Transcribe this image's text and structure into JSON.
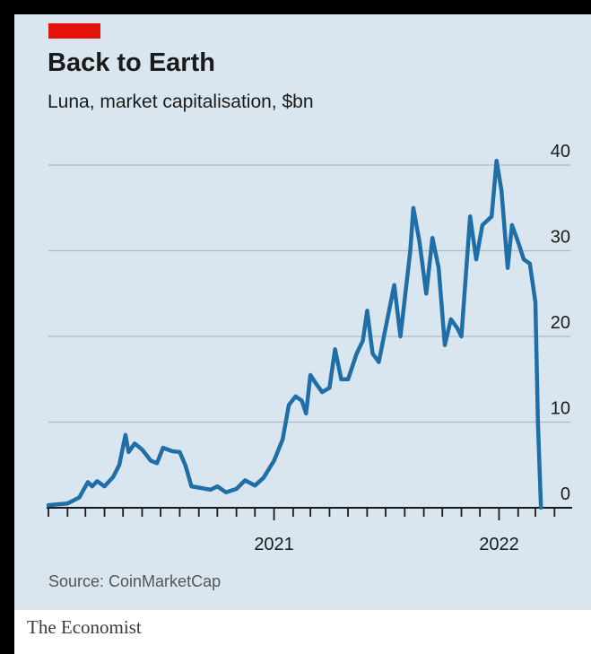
{
  "header": {
    "title": "Back to Earth",
    "subtitle": "Luna, market capitalisation, $bn"
  },
  "source": "Source: CoinMarketCap",
  "publisher": "The Economist",
  "colors": {
    "accent": "#e3120b",
    "line": "#1f6ea7",
    "panel_background": "#d9e6ef",
    "gridline": "#a9bac6"
  },
  "chart_data": {
    "type": "line",
    "title": "Back to Earth",
    "subtitle": "Luna, market capitalisation, $bn",
    "xlabel": "",
    "ylabel": "",
    "ylim": [
      0,
      40
    ],
    "yticks": [
      0,
      10,
      20,
      30,
      40
    ],
    "ytick_labels": [
      "0",
      "10",
      "20",
      "30",
      "40"
    ],
    "y_axis_position": "right",
    "grid": true,
    "xlim": [
      "2020-01-01",
      "2022-05-20"
    ],
    "xticks": [
      "2020-01-01",
      "2020-02-01",
      "2020-03-01",
      "2020-04-01",
      "2020-05-01",
      "2020-06-01",
      "2020-07-01",
      "2020-08-01",
      "2020-09-01",
      "2020-10-01",
      "2020-11-01",
      "2020-12-01",
      "2021-01-01",
      "2021-02-01",
      "2021-03-01",
      "2021-04-01",
      "2021-05-01",
      "2021-06-01",
      "2021-07-01",
      "2021-08-01",
      "2021-09-01",
      "2021-10-01",
      "2021-11-01",
      "2021-12-01",
      "2022-01-01",
      "2022-02-01",
      "2022-03-01",
      "2022-04-01",
      "2022-05-01"
    ],
    "xtick_labels": [
      {
        "date": "2021-01-01",
        "label": "2021"
      },
      {
        "date": "2022-01-01",
        "label": "2022"
      }
    ],
    "series": [
      {
        "points": [
          [
            "2020-01-01",
            0.3
          ],
          [
            "2020-01-15",
            0.4
          ],
          [
            "2020-02-01",
            0.5
          ],
          [
            "2020-02-20",
            1.2
          ],
          [
            "2020-03-05",
            3.0
          ],
          [
            "2020-03-12",
            2.5
          ],
          [
            "2020-03-20",
            3.1
          ],
          [
            "2020-04-01",
            2.5
          ],
          [
            "2020-04-15",
            3.6
          ],
          [
            "2020-04-25",
            5.0
          ],
          [
            "2020-05-05",
            8.5
          ],
          [
            "2020-05-10",
            6.5
          ],
          [
            "2020-05-20",
            7.5
          ],
          [
            "2020-06-01",
            6.8
          ],
          [
            "2020-06-15",
            5.5
          ],
          [
            "2020-06-25",
            5.2
          ],
          [
            "2020-07-05",
            7.0
          ],
          [
            "2020-07-20",
            6.6
          ],
          [
            "2020-08-01",
            6.5
          ],
          [
            "2020-08-10",
            5.0
          ],
          [
            "2020-08-20",
            2.5
          ],
          [
            "2020-09-05",
            2.3
          ],
          [
            "2020-09-20",
            2.1
          ],
          [
            "2020-10-01",
            2.5
          ],
          [
            "2020-10-15",
            1.8
          ],
          [
            "2020-11-01",
            2.2
          ],
          [
            "2020-11-15",
            3.2
          ],
          [
            "2020-12-01",
            2.6
          ],
          [
            "2020-12-15",
            3.5
          ],
          [
            "2021-01-01",
            5.5
          ],
          [
            "2021-01-15",
            8.0
          ],
          [
            "2021-01-25",
            12.0
          ],
          [
            "2021-02-05",
            13.0
          ],
          [
            "2021-02-15",
            12.5
          ],
          [
            "2021-02-22",
            11.0
          ],
          [
            "2021-03-01",
            15.5
          ],
          [
            "2021-03-10",
            14.5
          ],
          [
            "2021-03-20",
            13.5
          ],
          [
            "2021-04-01",
            14.0
          ],
          [
            "2021-04-10",
            18.5
          ],
          [
            "2021-04-20",
            15.0
          ],
          [
            "2021-05-01",
            15.0
          ],
          [
            "2021-05-15",
            18.0
          ],
          [
            "2021-05-25",
            19.5
          ],
          [
            "2021-06-01",
            23.0
          ],
          [
            "2021-06-10",
            18.0
          ],
          [
            "2021-06-20",
            17.0
          ],
          [
            "2021-07-01",
            21.0
          ],
          [
            "2021-07-15",
            26.0
          ],
          [
            "2021-07-25",
            20.0
          ],
          [
            "2021-08-10",
            30.0
          ],
          [
            "2021-08-15",
            35.0
          ],
          [
            "2021-08-25",
            31.0
          ],
          [
            "2021-09-05",
            25.0
          ],
          [
            "2021-09-15",
            31.5
          ],
          [
            "2021-09-25",
            28.0
          ],
          [
            "2021-10-05",
            19.0
          ],
          [
            "2021-10-15",
            22.0
          ],
          [
            "2021-10-25",
            21.0
          ],
          [
            "2021-11-01",
            20.0
          ],
          [
            "2021-11-15",
            34.0
          ],
          [
            "2021-11-25",
            29.0
          ],
          [
            "2021-12-05",
            33.0
          ],
          [
            "2021-12-20",
            34.0
          ],
          [
            "2021-12-28",
            40.5
          ],
          [
            "2022-01-05",
            37.0
          ],
          [
            "2022-01-15",
            28.0
          ],
          [
            "2022-01-22",
            33.0
          ],
          [
            "2022-02-01",
            31.0
          ],
          [
            "2022-02-10",
            29.0
          ],
          [
            "2022-02-20",
            28.5
          ],
          [
            "2022-03-01",
            24.0
          ],
          [
            "2022-03-05",
            10.0
          ],
          [
            "2022-03-10",
            0.0
          ]
        ]
      }
    ]
  }
}
